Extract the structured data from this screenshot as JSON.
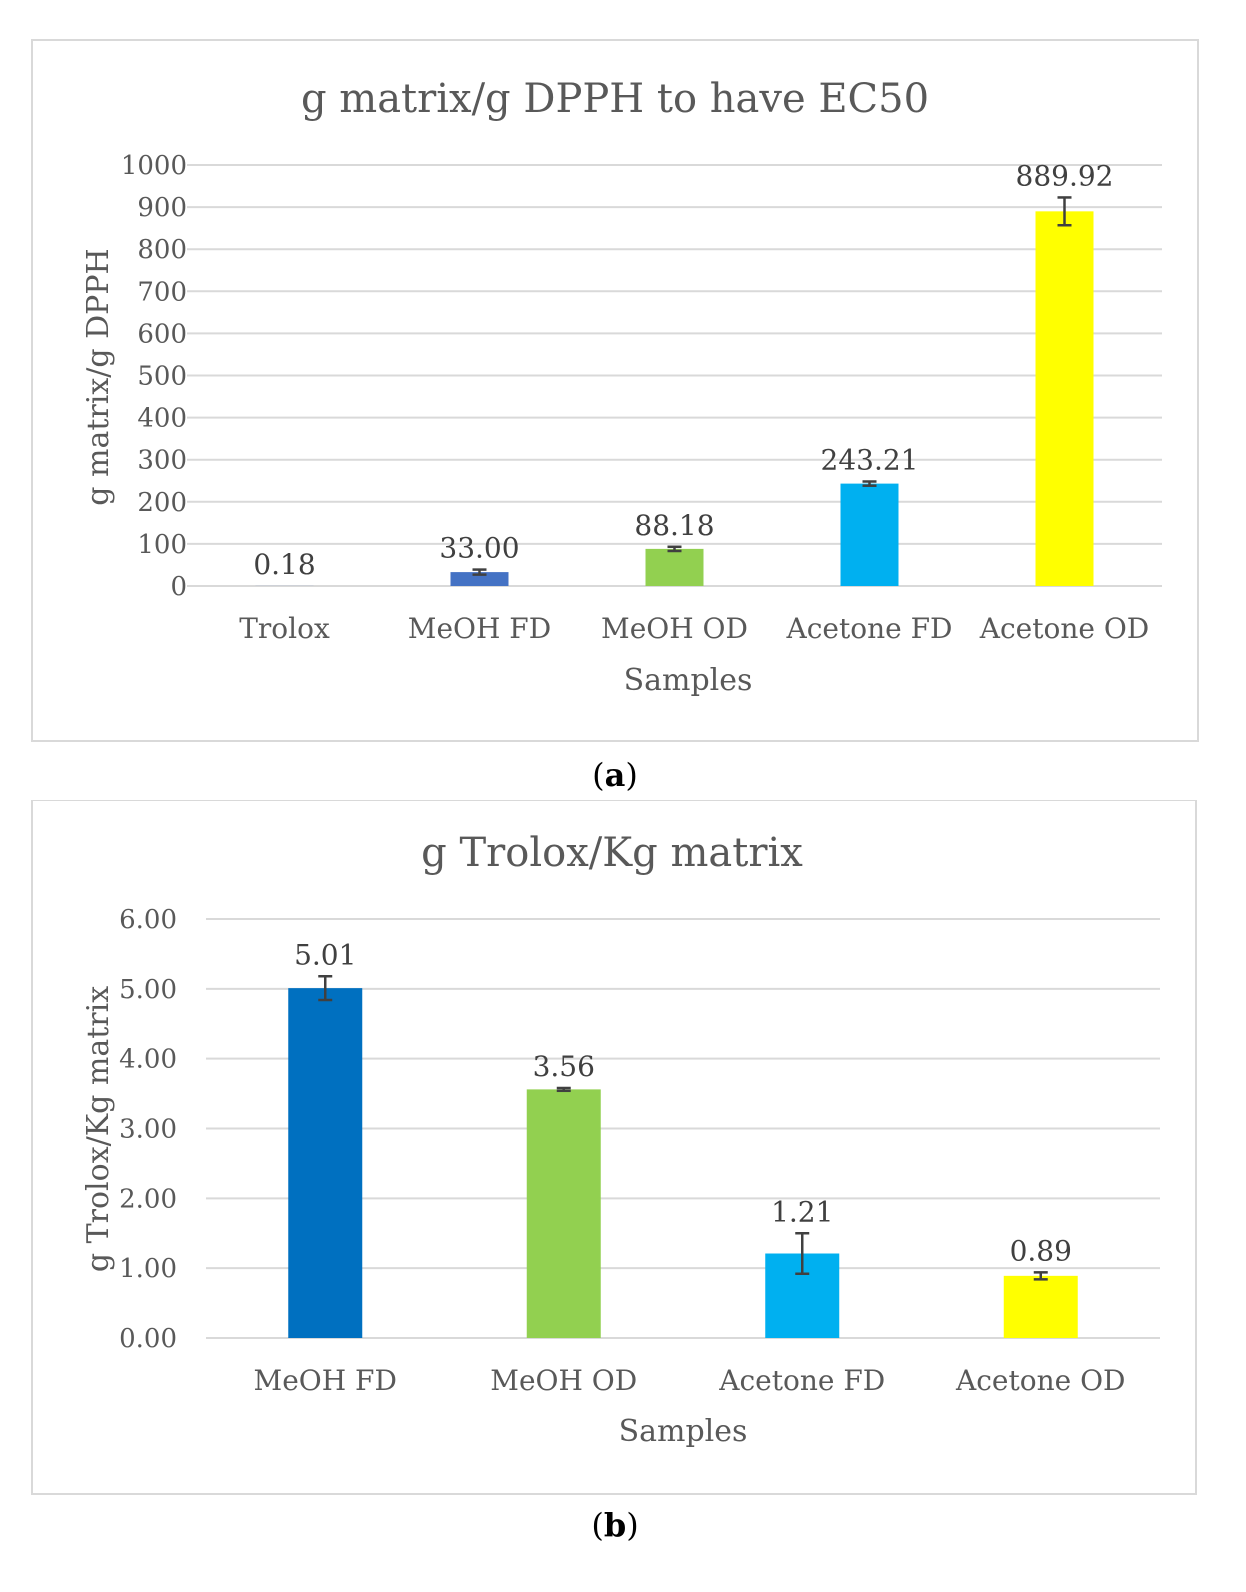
{
  "chart_data": [
    {
      "type": "bar",
      "title": "g matrix/g DPPH  to have EC50",
      "xlabel": "Samples",
      "ylabel": "g matrix/g DPPH",
      "categories": [
        "Trolox",
        "MeOH FD",
        "MeOH OD",
        "Acetone FD",
        "Acetone OD"
      ],
      "values": [
        0.18,
        33.0,
        88.18,
        243.21,
        889.92
      ],
      "data_labels": [
        "0.18",
        "33.00",
        "88.18",
        "243.21",
        "889.92"
      ],
      "errors": [
        0,
        6,
        5,
        5,
        33
      ],
      "colors": [
        "#4472C4",
        "#4472C4",
        "#92D050",
        "#00B0F0",
        "#FFFF00"
      ],
      "ylim": [
        0,
        1000
      ],
      "yticks": [
        "0",
        "100",
        "200",
        "300",
        "400",
        "500",
        "600",
        "700",
        "800",
        "900",
        "1000"
      ],
      "grid": true,
      "legend": "none",
      "caption": {
        "open": "(",
        "letter": "a",
        "close": ")"
      }
    },
    {
      "type": "bar",
      "title": "g Trolox/Kg matrix",
      "xlabel": "Samples",
      "ylabel": "g Trolox/Kg matrix",
      "categories": [
        "MeOH FD",
        "MeOH OD",
        "Acetone FD",
        "Acetone OD"
      ],
      "values": [
        5.01,
        3.56,
        1.21,
        0.89
      ],
      "data_labels": [
        "5.01",
        "3.56",
        "1.21",
        "0.89"
      ],
      "errors": [
        0.17,
        0.02,
        0.29,
        0.05
      ],
      "colors": [
        "#0070C0",
        "#92D050",
        "#00B0F0",
        "#FFFF00"
      ],
      "ylim": [
        0,
        6
      ],
      "yticks": [
        "0.00",
        "1.00",
        "2.00",
        "3.00",
        "4.00",
        "5.00",
        "6.00"
      ],
      "grid": true,
      "legend": "none",
      "caption": {
        "open": "(",
        "letter": "b",
        "close": ")"
      }
    }
  ]
}
